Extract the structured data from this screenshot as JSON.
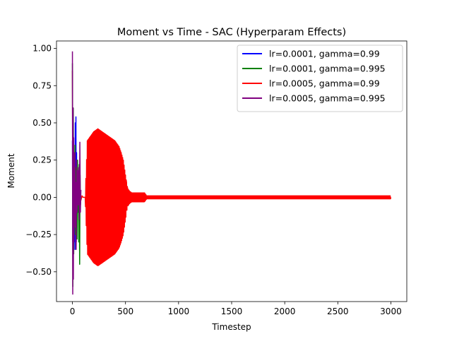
{
  "chart_data": {
    "type": "line",
    "title": "Moment vs Time - SAC (Hyperparam Effects)",
    "xlabel": "Timestep",
    "ylabel": "Moment",
    "xlim": [
      -150,
      3150
    ],
    "ylim": [
      -0.7,
      1.05
    ],
    "x_ticks": [
      0,
      500,
      1000,
      1500,
      2000,
      2500,
      3000
    ],
    "x_tick_labels": [
      "0",
      "500",
      "1000",
      "1500",
      "2000",
      "2500",
      "3000"
    ],
    "y_ticks": [
      -0.5,
      -0.25,
      0.0,
      0.25,
      0.5,
      0.75,
      1.0
    ],
    "y_tick_labels": [
      "−0.50",
      "−0.25",
      "0.00",
      "0.25",
      "0.50",
      "0.75",
      "1.00"
    ],
    "grid": false,
    "legend_position": "top-right",
    "series": [
      {
        "name": "lr=0.0001, gamma=0.99",
        "color": "#0000ff",
        "x": [
          0,
          3,
          6,
          9,
          12,
          15,
          18,
          21,
          24,
          27,
          30,
          33,
          36,
          39,
          42,
          45,
          48
        ],
        "y": [
          0.38,
          -0.3,
          0.42,
          -0.2,
          0.3,
          0.1,
          -0.1,
          0.25,
          -0.35,
          0.5,
          -0.2,
          0.54,
          -0.3,
          0.3,
          0.0,
          0.05,
          0.02
        ]
      },
      {
        "name": "lr=0.0001, gamma=0.995",
        "color": "#008000",
        "x": [
          0,
          4,
          8,
          12,
          16,
          20,
          24,
          28,
          32,
          36,
          40,
          44,
          48,
          52,
          56,
          60,
          64,
          68,
          72,
          76,
          80
        ],
        "y": [
          0.9,
          -0.6,
          0.6,
          -0.38,
          0.3,
          -0.2,
          0.35,
          -0.25,
          0.2,
          -0.15,
          0.15,
          -0.28,
          0.25,
          -0.1,
          0.1,
          -0.3,
          0.22,
          -0.45,
          0.15,
          -0.05,
          0.0
        ]
      },
      {
        "name": "lr=0.0005, gamma=0.99",
        "color": "#ff0000",
        "x": [
          0,
          5,
          10,
          15,
          20,
          30,
          40,
          50,
          60,
          70,
          80,
          90,
          100,
          110,
          120,
          140,
          160,
          180,
          200,
          220,
          240,
          260,
          280,
          300,
          320,
          340,
          360,
          380,
          400,
          420,
          440,
          460,
          480,
          500,
          510,
          520,
          540,
          560,
          580,
          600,
          620,
          640,
          660,
          680,
          700,
          800,
          1000,
          1200,
          1400,
          1600,
          1800,
          2000,
          2200,
          2400,
          2600,
          2800,
          3000
        ],
        "y": [
          0.85,
          -0.4,
          0.3,
          -0.2,
          0.2,
          -0.15,
          0.15,
          -0.1,
          0.05,
          0.0,
          -0.02,
          0.01,
          0.0,
          0.0,
          0.0,
          0.38,
          0.4,
          0.42,
          0.44,
          0.45,
          0.46,
          0.45,
          0.44,
          0.43,
          0.42,
          0.41,
          0.4,
          0.39,
          0.38,
          0.36,
          0.34,
          0.3,
          0.25,
          0.15,
          0.1,
          0.06,
          0.04,
          0.03,
          0.03,
          0.03,
          0.03,
          0.03,
          0.03,
          0.03,
          0.01,
          0.01,
          0.01,
          0.01,
          0.01,
          0.01,
          0.01,
          0.01,
          0.01,
          0.01,
          0.01,
          0.01,
          0.01
        ]
      },
      {
        "name": "lr=0.0005, gamma=0.995",
        "color": "#800080",
        "x": [
          0,
          3,
          6,
          9,
          12,
          15,
          18,
          21,
          24,
          27,
          30,
          35,
          40,
          45,
          50,
          55,
          60,
          65,
          70,
          75,
          80
        ],
        "y": [
          0.98,
          -0.65,
          0.6,
          -0.55,
          0.4,
          -0.3,
          0.2,
          -0.15,
          0.3,
          -0.2,
          0.1,
          -0.35,
          0.25,
          -0.1,
          0.18,
          -0.05,
          0.2,
          -0.15,
          0.37,
          -0.1,
          0.05
        ]
      }
    ]
  }
}
